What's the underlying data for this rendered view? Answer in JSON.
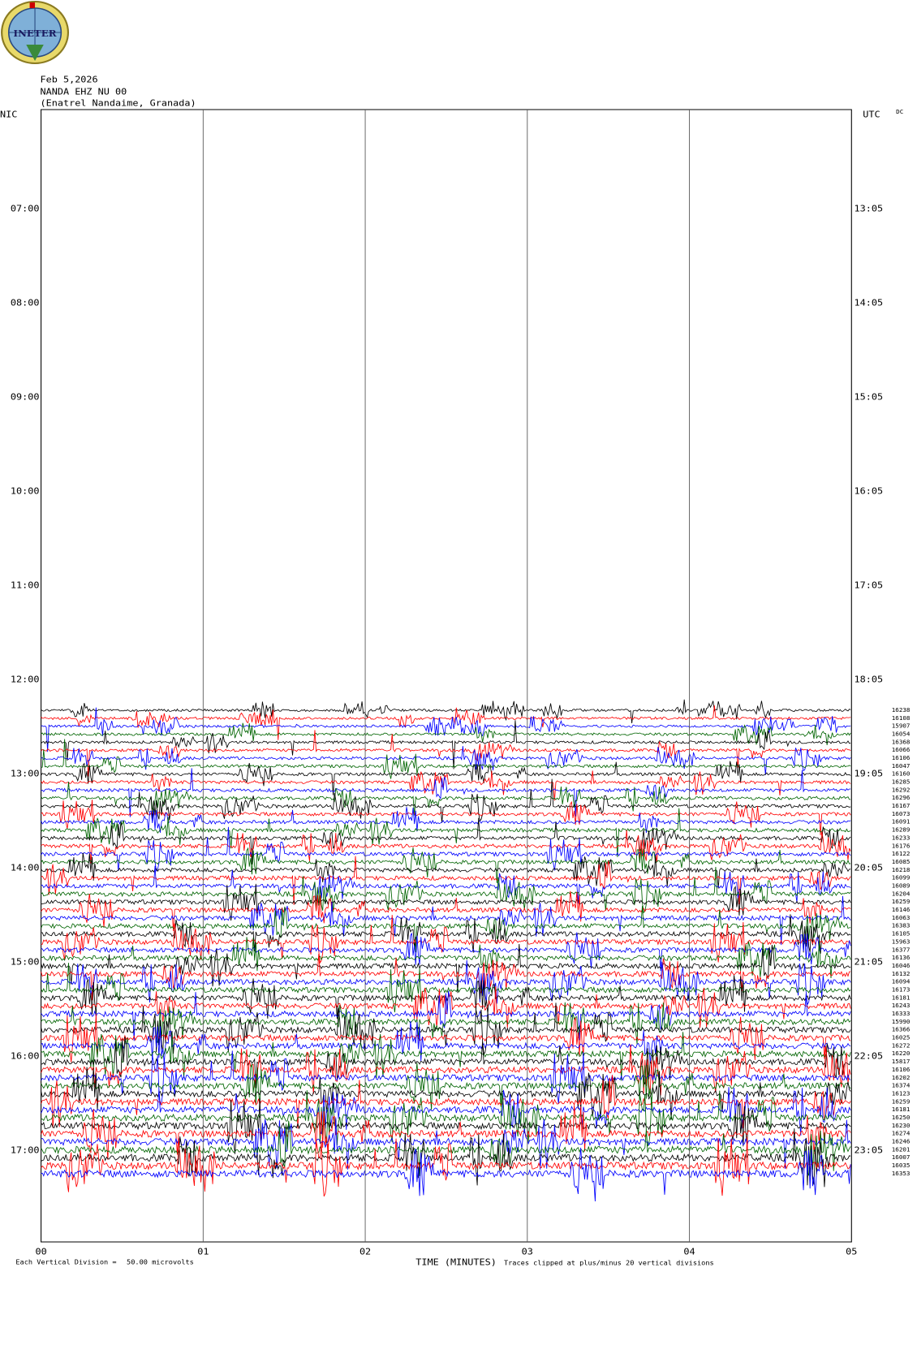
{
  "header": {
    "logo": "INETER",
    "date": "Feb 5,2026",
    "station": "NANDA EHZ NU 00",
    "location": "(Enatrel Nandaime, Granada)"
  },
  "axes": {
    "left_title": "NIC",
    "right_title": "UTC",
    "dc_title": "DC",
    "left_times": [
      "07:00",
      "08:00",
      "09:00",
      "10:00",
      "11:00",
      "12:00",
      "13:00",
      "14:00",
      "15:00",
      "16:00",
      "17:00"
    ],
    "right_times": [
      "13:05",
      "14:05",
      "15:05",
      "16:05",
      "17:05",
      "18:05",
      "19:05",
      "20:05",
      "21:05",
      "22:05",
      "23:05"
    ],
    "x_ticks": [
      "00",
      "01",
      "02",
      "03",
      "04",
      "05"
    ],
    "x_label": "TIME (MINUTES)"
  },
  "dc_values": [
    "16238",
    "16108",
    "15907",
    "16054",
    "16368",
    "16066",
    "16106",
    "16047",
    "16160",
    "16285",
    "16292",
    "16296",
    "16167",
    "16073",
    "16091",
    "16289",
    "16233",
    "16176",
    "16122",
    "16085",
    "16218",
    "16099",
    "16089",
    "16204",
    "16259",
    "16146",
    "16063",
    "16383",
    "16105",
    "15963",
    "16377",
    "16136",
    "16046",
    "16132",
    "16094",
    "16173",
    "16181",
    "16243",
    "16333",
    "15990",
    "16366",
    "16025",
    "16272",
    "16220",
    "15817",
    "16106",
    "16202",
    "16374",
    "16123",
    "16259",
    "16181",
    "16250",
    "16230",
    "16274",
    "16246",
    "16201",
    "16007",
    "16035",
    "16353"
  ],
  "footer": {
    "scale_label": "Each Vertical Division =",
    "scale_value": "50.00 microvolts",
    "clip_note": "Traces clipped at plus/minus 20 vertical divisions"
  }
}
